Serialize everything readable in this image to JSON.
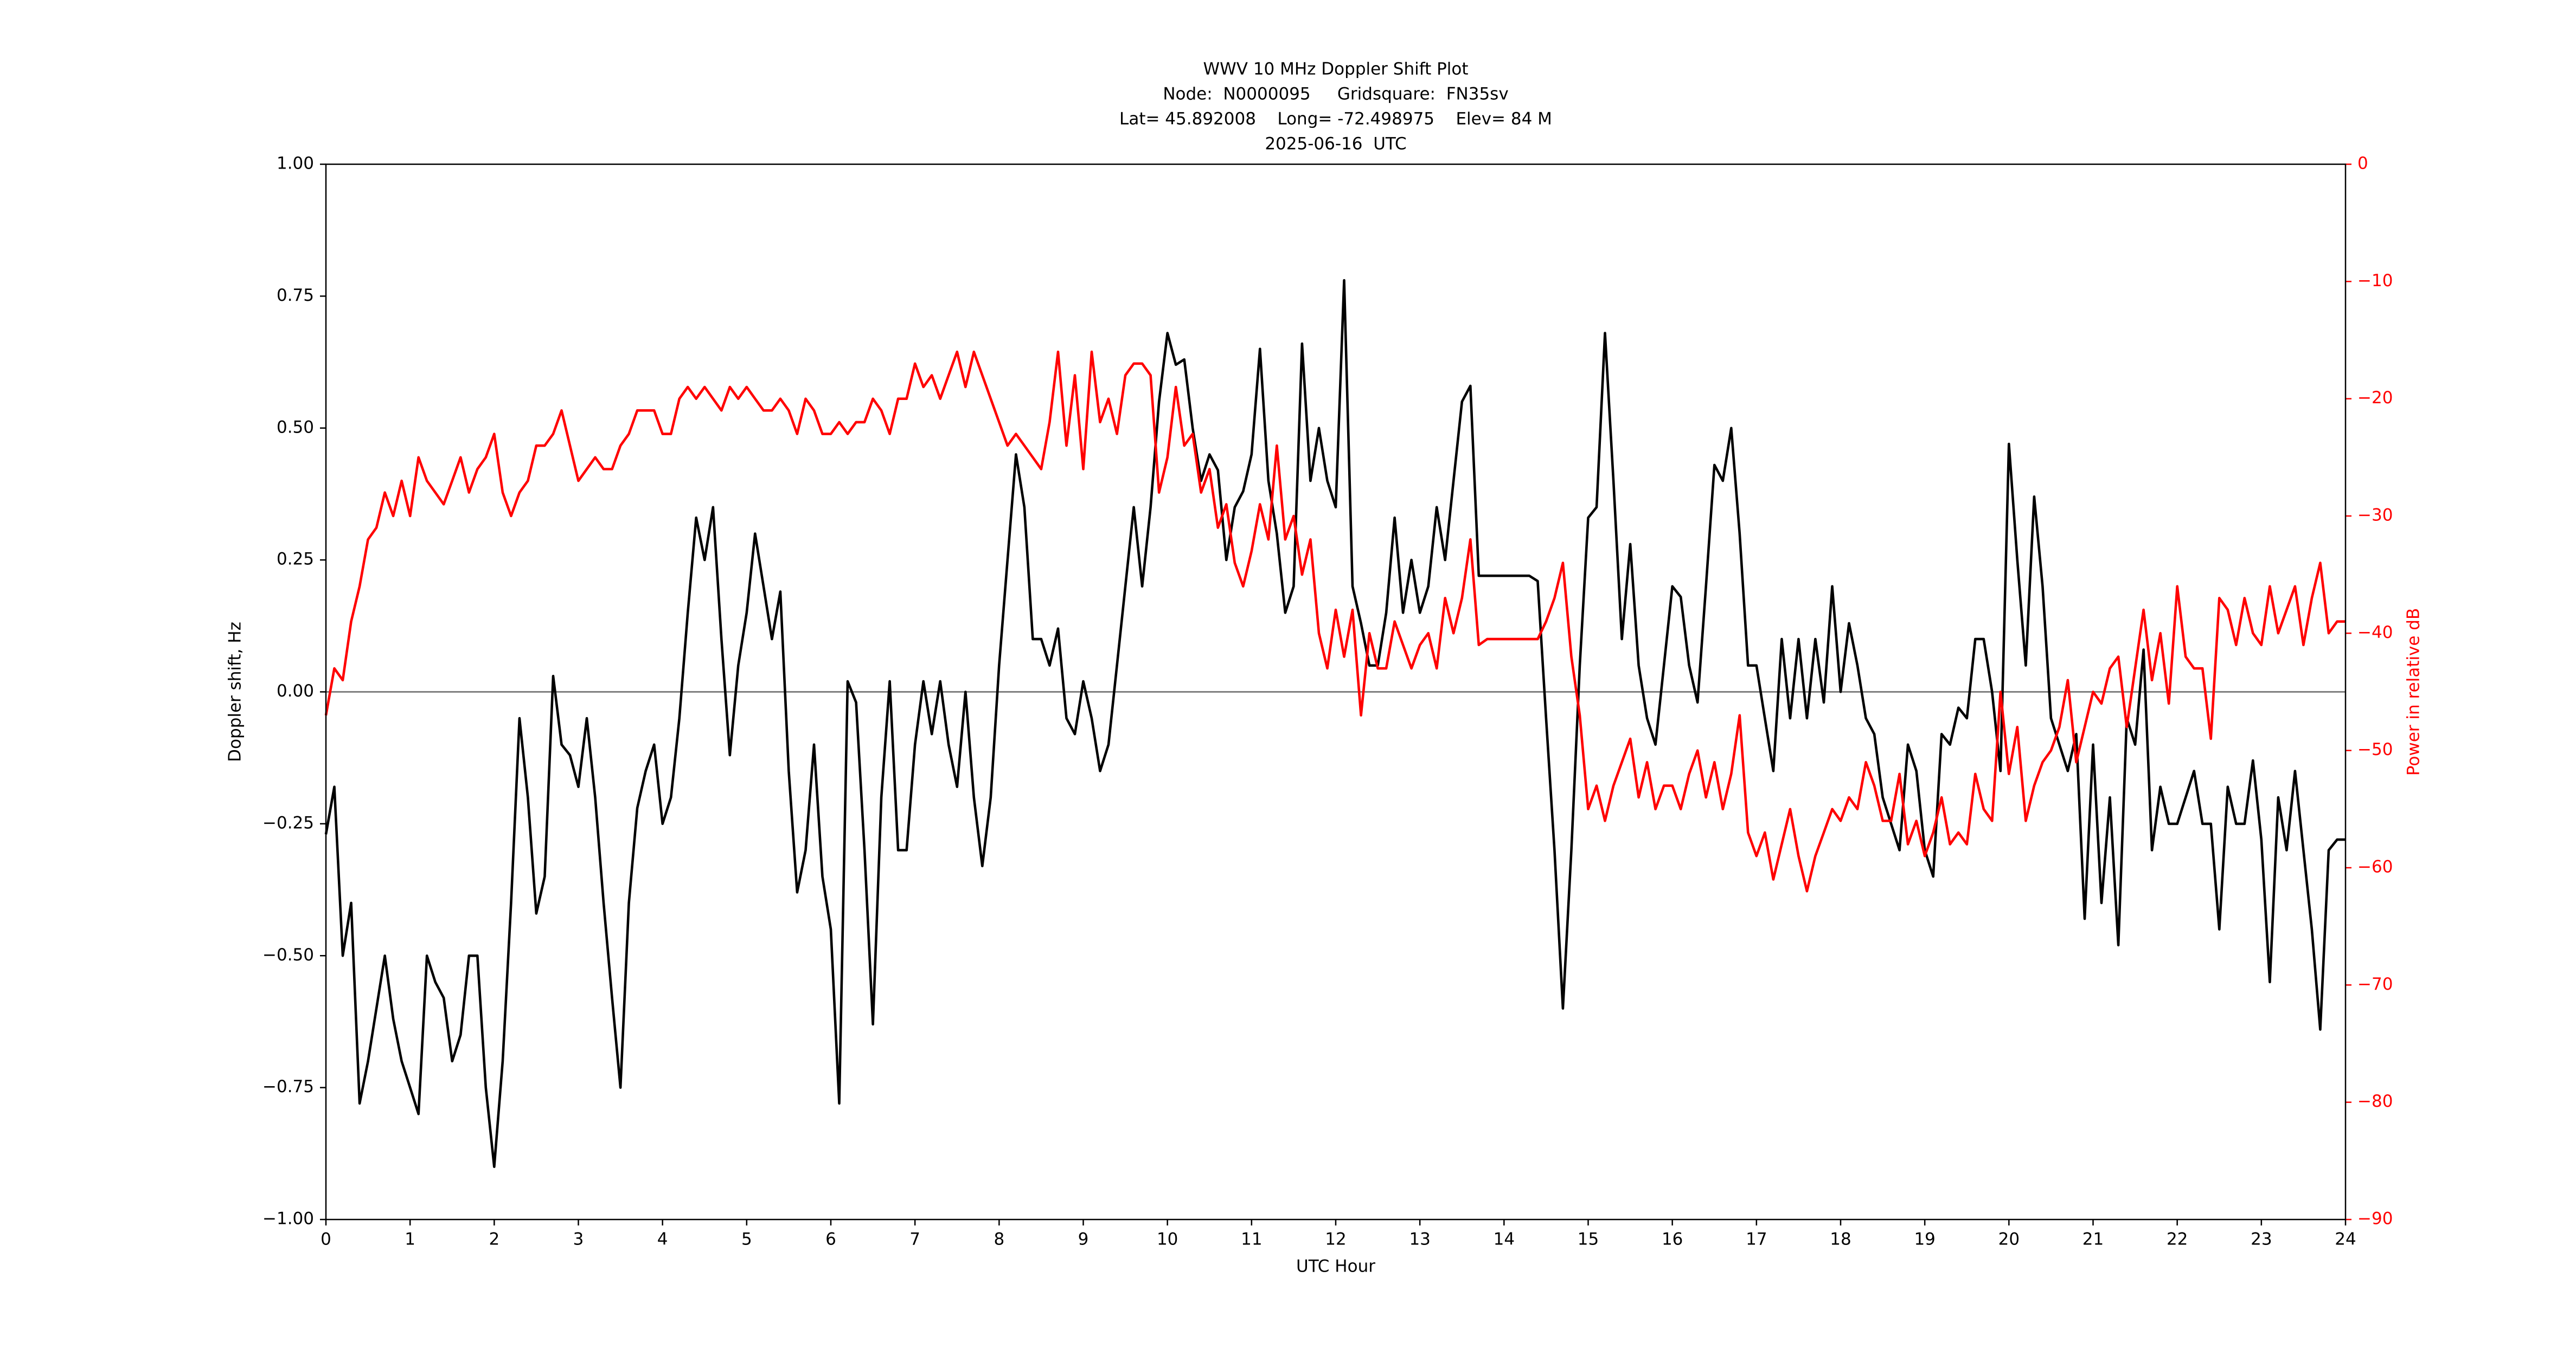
{
  "chart_data": {
    "type": "line",
    "title": [
      "WWV 10 MHz Doppler Shift Plot",
      "Node:  N0000095     Gridsquare:  FN35sv",
      "Lat= 45.892008    Long= -72.498975    Elev= 84 M",
      "2025-06-16  UTC"
    ],
    "x_label": "UTC Hour",
    "y_label": "Doppler shift, Hz",
    "y2_label": "Power in relative dB",
    "y2_color": "#ff0000",
    "x": [
      0,
      0.1,
      0.2,
      0.3,
      0.4,
      0.5,
      0.6,
      0.7,
      0.8,
      0.9,
      1,
      1.1,
      1.2,
      1.3,
      1.4,
      1.5,
      1.6,
      1.7,
      1.8,
      1.9,
      2,
      2.1,
      2.2,
      2.3,
      2.4,
      2.5,
      2.6,
      2.7,
      2.8,
      2.9,
      3,
      3.1,
      3.2,
      3.3,
      3.4,
      3.5,
      3.6,
      3.7,
      3.8,
      3.9,
      4,
      4.1,
      4.2,
      4.3,
      4.4,
      4.5,
      4.6,
      4.7,
      4.8,
      4.9,
      5,
      5.1,
      5.2,
      5.3,
      5.4,
      5.5,
      5.6,
      5.7,
      5.8,
      5.9,
      6,
      6.1,
      6.2,
      6.3,
      6.4,
      6.5,
      6.6,
      6.7,
      6.8,
      6.9,
      7,
      7.1,
      7.2,
      7.3,
      7.4,
      7.5,
      7.6,
      7.7,
      7.8,
      7.9,
      8,
      8.1,
      8.2,
      8.3,
      8.4,
      8.5,
      8.6,
      8.7,
      8.8,
      8.9,
      9,
      9.1,
      9.2,
      9.3,
      9.4,
      9.5,
      9.6,
      9.7,
      9.8,
      9.9,
      10,
      10.1,
      10.2,
      10.3,
      10.4,
      10.5,
      10.6,
      10.7,
      10.8,
      10.9,
      11,
      11.1,
      11.2,
      11.3,
      11.4,
      11.5,
      11.6,
      11.7,
      11.8,
      11.9,
      12,
      12.1,
      12.2,
      12.3,
      12.4,
      12.5,
      12.6,
      12.7,
      12.8,
      12.9,
      13,
      13.1,
      13.2,
      13.3,
      13.4,
      13.5,
      13.6,
      13.7,
      13.8,
      13.9,
      14,
      14.1,
      14.2,
      14.3,
      14.4,
      14.5,
      14.6,
      14.7,
      14.8,
      14.9,
      15,
      15.1,
      15.2,
      15.3,
      15.4,
      15.5,
      15.6,
      15.7,
      15.8,
      15.9,
      16,
      16.1,
      16.2,
      16.3,
      16.4,
      16.5,
      16.6,
      16.7,
      16.8,
      16.9,
      17,
      17.1,
      17.2,
      17.3,
      17.4,
      17.5,
      17.6,
      17.7,
      17.8,
      17.9,
      18,
      18.1,
      18.2,
      18.3,
      18.4,
      18.5,
      18.6,
      18.7,
      18.8,
      18.9,
      19,
      19.1,
      19.2,
      19.3,
      19.4,
      19.5,
      19.6,
      19.7,
      19.8,
      19.9,
      20,
      20.1,
      20.2,
      20.3,
      20.4,
      20.5,
      20.6,
      20.7,
      20.8,
      20.9,
      21,
      21.1,
      21.2,
      21.3,
      21.4,
      21.5,
      21.6,
      21.7,
      21.8,
      21.9,
      22,
      22.1,
      22.2,
      22.3,
      22.4,
      22.5,
      22.6,
      22.7,
      22.8,
      22.9,
      23,
      23.1,
      23.2,
      23.3,
      23.4,
      23.5,
      23.6,
      23.7,
      23.8,
      23.9,
      24
    ],
    "series": [
      {
        "color": "#000000",
        "axis": "y",
        "values": [
          -0.27,
          -0.18,
          -0.5,
          -0.4,
          -0.78,
          -0.7,
          -0.6,
          -0.5,
          -0.62,
          -0.7,
          -0.75,
          -0.8,
          -0.5,
          -0.55,
          -0.58,
          -0.7,
          -0.65,
          -0.5,
          -0.5,
          -0.75,
          -0.9,
          -0.7,
          -0.4,
          -0.05,
          -0.2,
          -0.42,
          -0.35,
          0.03,
          -0.1,
          -0.12,
          -0.18,
          -0.05,
          -0.2,
          -0.4,
          -0.58,
          -0.75,
          -0.4,
          -0.22,
          -0.15,
          -0.1,
          -0.25,
          -0.2,
          -0.05,
          0.15,
          0.33,
          0.25,
          0.35,
          0.1,
          -0.12,
          0.05,
          0.15,
          0.3,
          0.2,
          0.1,
          0.19,
          -0.15,
          -0.38,
          -0.3,
          -0.1,
          -0.35,
          -0.45,
          -0.78,
          0.02,
          -0.02,
          -0.3,
          -0.63,
          -0.2,
          0.02,
          -0.3,
          -0.3,
          -0.1,
          0.02,
          -0.08,
          0.02,
          -0.1,
          -0.18,
          0,
          -0.2,
          -0.33,
          -0.2,
          0.05,
          0.25,
          0.45,
          0.35,
          0.1,
          0.1,
          0.05,
          0.12,
          -0.05,
          -0.08,
          0.02,
          -0.05,
          -0.15,
          -0.1,
          0.05,
          0.2,
          0.35,
          0.2,
          0.35,
          0.55,
          0.68,
          0.62,
          0.63,
          0.5,
          0.4,
          0.45,
          0.42,
          0.25,
          0.35,
          0.38,
          0.45,
          0.65,
          0.4,
          0.3,
          0.15,
          0.2,
          0.66,
          0.4,
          0.5,
          0.4,
          0.35,
          0.78,
          0.2,
          0.13,
          0.05,
          0.05,
          0.15,
          0.33,
          0.15,
          0.25,
          0.15,
          0.2,
          0.35,
          0.25,
          0.4,
          0.55,
          0.58,
          0.22,
          0.22,
          0.22,
          0.22,
          0.22,
          0.22,
          0.22,
          0.21,
          -0.05,
          -0.3,
          -0.6,
          -0.3,
          0.05,
          0.33,
          0.35,
          0.68,
          0.4,
          0.1,
          0.28,
          0.05,
          -0.05,
          -0.1,
          0.05,
          0.2,
          0.18,
          0.05,
          -0.02,
          0.2,
          0.43,
          0.4,
          0.5,
          0.3,
          0.05,
          0.05,
          -0.05,
          -0.15,
          0.1,
          -0.05,
          0.1,
          -0.05,
          0.1,
          -0.02,
          0.2,
          0,
          0.13,
          0.05,
          -0.05,
          -0.08,
          -0.2,
          -0.25,
          -0.3,
          -0.1,
          -0.15,
          -0.3,
          -0.35,
          -0.08,
          -0.1,
          -0.03,
          -0.05,
          0.1,
          0.1,
          0,
          -0.15,
          0.47,
          0.25,
          0.05,
          0.37,
          0.2,
          -0.05,
          -0.1,
          -0.15,
          -0.08,
          -0.43,
          -0.1,
          -0.4,
          -0.2,
          -0.48,
          -0.05,
          -0.1,
          0.08,
          -0.3,
          -0.18,
          -0.25,
          -0.25,
          -0.2,
          -0.15,
          -0.25,
          -0.25,
          -0.45,
          -0.18,
          -0.25,
          -0.25,
          -0.13,
          -0.28,
          -0.55,
          -0.2,
          -0.3,
          -0.15,
          -0.3,
          -0.45,
          -0.64,
          -0.3,
          -0.28,
          -0.28
        ]
      },
      {
        "color": "#ff0000",
        "axis": "y2",
        "values": [
          -47,
          -43,
          -44,
          -39,
          -36,
          -32,
          -31,
          -28,
          -30,
          -27,
          -30,
          -25,
          -27,
          -28,
          -29,
          -27,
          -25,
          -28,
          -26,
          -25,
          -23,
          -28,
          -30,
          -28,
          -27,
          -24,
          -24,
          -23,
          -21,
          -24,
          -27,
          -26,
          -25,
          -26,
          -26,
          -24,
          -23,
          -21,
          -21,
          -21,
          -23,
          -23,
          -20,
          -19,
          -20,
          -19,
          -20,
          -21,
          -19,
          -20,
          -19,
          -20,
          -21,
          -21,
          -20,
          -21,
          -23,
          -20,
          -21,
          -23,
          -23,
          -22,
          -23,
          -22,
          -22,
          -20,
          -21,
          -23,
          -20,
          -20,
          -17,
          -19,
          -18,
          -20,
          -18,
          -16,
          -19,
          -16,
          -18,
          -20,
          -22,
          -24,
          -23,
          -24,
          -25,
          -26,
          -22,
          -16,
          -24,
          -18,
          -26,
          -16,
          -22,
          -20,
          -23,
          -18,
          -17,
          -17,
          -18,
          -28,
          -25,
          -19,
          -24,
          -23,
          -28,
          -26,
          -31,
          -29,
          -34,
          -36,
          -33,
          -29,
          -32,
          -24,
          -32,
          -30,
          -35,
          -32,
          -40,
          -43,
          -38,
          -42,
          -38,
          -47,
          -40,
          -43,
          -43,
          -39,
          -41,
          -43,
          -41,
          -40,
          -43,
          -37,
          -40,
          -37,
          -32,
          -41,
          -40.5,
          -40.5,
          -40.5,
          -40.5,
          -40.5,
          -40.5,
          -40.5,
          -39,
          -37,
          -34,
          -42,
          -47,
          -55,
          -53,
          -56,
          -53,
          -51,
          -49,
          -54,
          -51,
          -55,
          -53,
          -53,
          -55,
          -52,
          -50,
          -54,
          -51,
          -55,
          -52,
          -47,
          -57,
          -59,
          -57,
          -61,
          -58,
          -55,
          -59,
          -62,
          -59,
          -57,
          -55,
          -56,
          -54,
          -55,
          -51,
          -53,
          -56,
          -56,
          -52,
          -58,
          -56,
          -59,
          -57,
          -54,
          -58,
          -57,
          -58,
          -52,
          -55,
          -56,
          -45,
          -52,
          -48,
          -56,
          -53,
          -51,
          -50,
          -48,
          -44,
          -51,
          -48,
          -45,
          -46,
          -43,
          -42,
          -48,
          -43,
          -38,
          -44,
          -40,
          -46,
          -36,
          -42,
          -43,
          -43,
          -49,
          -37,
          -38,
          -41,
          -37,
          -40,
          -41,
          -36,
          -40,
          -38,
          -36,
          -41,
          -37,
          -34,
          -40,
          -39,
          -39
        ]
      }
    ],
    "reference_line": {
      "value": 0,
      "color": "#808080"
    },
    "xlim": [
      0,
      24
    ],
    "xticks": [
      0,
      1,
      2,
      3,
      4,
      5,
      6,
      7,
      8,
      9,
      10,
      11,
      12,
      13,
      14,
      15,
      16,
      17,
      18,
      19,
      20,
      21,
      22,
      23,
      24
    ],
    "ylim": [
      -1,
      1
    ],
    "yticks": [
      {
        "value": -1,
        "label": "−1.00"
      },
      {
        "value": -0.75,
        "label": "−0.75"
      },
      {
        "value": -0.5,
        "label": "−0.50"
      },
      {
        "value": -0.25,
        "label": "−0.25"
      },
      {
        "value": 0,
        "label": "0.00"
      },
      {
        "value": 0.25,
        "label": "0.25"
      },
      {
        "value": 0.5,
        "label": "0.50"
      },
      {
        "value": 0.75,
        "label": "0.75"
      },
      {
        "value": 1,
        "label": "1.00"
      }
    ],
    "y2lim": [
      -90,
      0
    ],
    "y2ticks": [
      {
        "value": -90,
        "label": "−90"
      },
      {
        "value": -80,
        "label": "−80"
      },
      {
        "value": -70,
        "label": "−70"
      },
      {
        "value": -60,
        "label": "−60"
      },
      {
        "value": -50,
        "label": "−50"
      },
      {
        "value": -40,
        "label": "−40"
      },
      {
        "value": -30,
        "label": "−30"
      },
      {
        "value": -20,
        "label": "−20"
      },
      {
        "value": -10,
        "label": "−10"
      },
      0
    ]
  }
}
